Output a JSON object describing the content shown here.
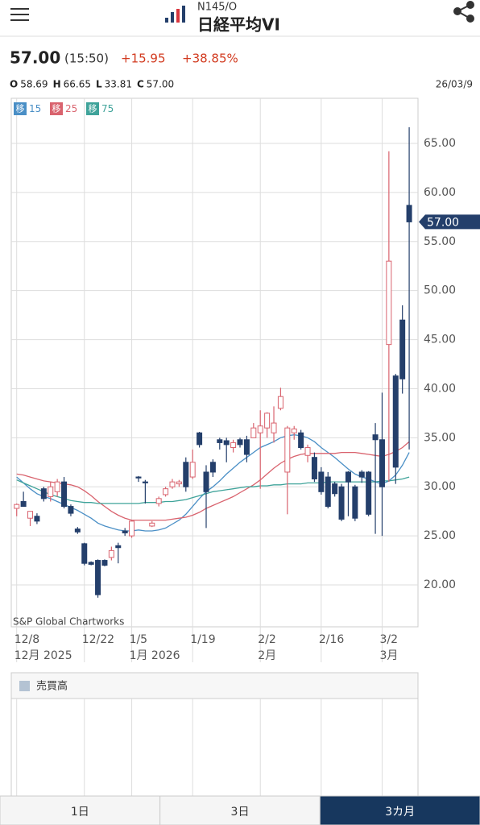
{
  "header": {
    "code": "N145/O",
    "name": "日経平均VI"
  },
  "quote": {
    "price": "57.00",
    "time": "(15:50)",
    "change": "+15.95",
    "change_pct": "+38.85%",
    "ohlc": [
      {
        "label": "O",
        "value": "58.69"
      },
      {
        "label": "H",
        "value": "66.65"
      },
      {
        "label": "L",
        "value": "33.81"
      },
      {
        "label": "C",
        "value": "57.00"
      }
    ],
    "date": "26/03/9"
  },
  "chart_data": {
    "type": "candlestick",
    "credit": "S&P Global Chartworks",
    "ma_label": "移",
    "categories": [
      "12/8",
      null,
      null,
      null,
      null,
      null,
      null,
      null,
      null,
      null,
      "12/22",
      null,
      null,
      null,
      null,
      null,
      null,
      "1/5",
      null,
      null,
      null,
      null,
      null,
      null,
      null,
      null,
      "1/19",
      null,
      null,
      null,
      null,
      null,
      null,
      null,
      null,
      null,
      "2/2",
      null,
      null,
      null,
      null,
      null,
      null,
      null,
      null,
      "2/16",
      null,
      null,
      null,
      null,
      null,
      null,
      null,
      null,
      "3/2",
      null,
      null,
      null,
      null
    ],
    "month_labels": [
      "12月 2025",
      null,
      null,
      null,
      null,
      null,
      null,
      null,
      null,
      null,
      null,
      null,
      null,
      null,
      null,
      null,
      null,
      "1月 2026",
      null,
      null,
      null,
      null,
      null,
      null,
      null,
      null,
      null,
      null,
      null,
      null,
      null,
      null,
      null,
      null,
      null,
      null,
      "2月",
      null,
      null,
      null,
      null,
      null,
      null,
      null,
      null,
      null,
      null,
      null,
      null,
      null,
      null,
      null,
      null,
      null,
      "3月",
      null,
      null,
      null,
      null
    ],
    "open": [
      27.8,
      28.5,
      26.8,
      27,
      29.8,
      29,
      29.5,
      30.5,
      28,
      25.7,
      24.2,
      22.3,
      22.5,
      22.5,
      22.8,
      24,
      25.5,
      25,
      31,
      30.5,
      26,
      28.3,
      29.2,
      30,
      30.3,
      32.5,
      31,
      35.5,
      31.5,
      32.5,
      34.8,
      34.7,
      34,
      34.8,
      34.8,
      35,
      35.5,
      36,
      35.5,
      38,
      31.5,
      35.5,
      35.5,
      33.2,
      33,
      31.5,
      31,
      30.3,
      30,
      31.5,
      30,
      31.5,
      31.5,
      35.3,
      34.8,
      44.5,
      41.3,
      47,
      58.69
    ],
    "high": [
      28.3,
      29.5,
      27.5,
      27.3,
      30,
      30.5,
      30.8,
      31,
      28.2,
      25.9,
      24.3,
      22.4,
      22.6,
      22.6,
      23.9,
      24.3,
      25.8,
      26.6,
      31.1,
      30.7,
      26.5,
      29,
      30,
      30.8,
      30.7,
      33,
      33.8,
      35.6,
      32.2,
      32.8,
      35,
      35,
      34.8,
      35,
      35.2,
      36.5,
      37.8,
      37.6,
      38.2,
      40.1,
      36.2,
      36.2,
      35.8,
      34.3,
      33.5,
      32,
      31.5,
      30.5,
      30.3,
      31.6,
      30.2,
      31.7,
      31.6,
      36.5,
      39.6,
      64.2,
      41.5,
      48.5,
      66.65
    ],
    "low": [
      27,
      28,
      26,
      26.2,
      28.5,
      28.5,
      29,
      27.8,
      27,
      25.2,
      22,
      22,
      18.7,
      21.9,
      22.5,
      22.2,
      25,
      24.8,
      30.5,
      28.3,
      25.9,
      28,
      29,
      29.8,
      30,
      29.5,
      30.8,
      34,
      25.8,
      31,
      33.8,
      32.5,
      33.5,
      34,
      32.5,
      35,
      29.8,
      35,
      34.5,
      37.8,
      27.2,
      34.8,
      33.8,
      32.5,
      30.5,
      29.2,
      27.8,
      29,
      26.5,
      27,
      26.5,
      30.4,
      27,
      25.2,
      25,
      30.5,
      30.3,
      39.5,
      33.81
    ],
    "close": [
      28.2,
      28,
      27.5,
      26.5,
      28.8,
      30,
      30.5,
      28,
      27.3,
      25.4,
      22.2,
      22.1,
      19,
      22,
      23.5,
      23.8,
      25.3,
      26.5,
      30.9,
      30.4,
      26.3,
      28.8,
      29.8,
      30.5,
      30.5,
      30,
      32.5,
      34.3,
      29.5,
      31.5,
      34.5,
      34.3,
      34.5,
      34.3,
      33.3,
      36,
      36.2,
      37.5,
      36.5,
      39.2,
      36,
      35.9,
      34,
      34,
      30.8,
      29.5,
      28,
      29.3,
      26.7,
      30.5,
      26.8,
      31,
      27.2,
      34.8,
      30,
      53,
      32,
      41,
      57
    ],
    "up_color": "#d9636e",
    "down_color": "#243f6b",
    "series": [
      {
        "name": "15",
        "color": "#4a8fc6",
        "values": [
          31,
          30.4,
          29.8,
          29.3,
          29,
          28.8,
          28.5,
          28.2,
          27.9,
          27.6,
          27.2,
          26.8,
          26.3,
          26,
          25.8,
          25.6,
          25.5,
          25.5,
          25.6,
          25.5,
          25.5,
          25.6,
          25.8,
          26.2,
          26.6,
          27.2,
          28,
          28.8,
          29.5,
          30,
          30.6,
          31.3,
          31.9,
          32.5,
          33,
          33.5,
          34,
          34.3,
          34.6,
          35,
          35.2,
          35.3,
          35.2,
          35,
          34.6,
          34,
          33.5,
          33,
          32.4,
          31.8,
          31.3,
          31,
          30.8,
          30.5,
          30.3,
          30.6,
          31.2,
          32.2,
          33.5
        ]
      },
      {
        "name": "25",
        "color": "#d9636e",
        "values": [
          31.3,
          31.2,
          31,
          30.8,
          30.6,
          30.5,
          30.4,
          30.3,
          30.2,
          30,
          29.6,
          29.1,
          28.5,
          28,
          27.5,
          27.1,
          26.8,
          26.6,
          26.6,
          26.6,
          26.6,
          26.6,
          26.6,
          26.7,
          26.8,
          26.9,
          27.1,
          27.4,
          27.8,
          28.1,
          28.4,
          28.7,
          29,
          29.4,
          29.8,
          30.2,
          30.7,
          31.3,
          31.9,
          32.4,
          32.8,
          33.1,
          33.3,
          33.4,
          33.4,
          33.4,
          33.4,
          33.4,
          33.5,
          33.5,
          33.5,
          33.4,
          33.3,
          33.2,
          33.1,
          33.3,
          33.6,
          34,
          34.6
        ]
      },
      {
        "name": "75",
        "color": "#3fa39a",
        "values": [
          30.7,
          30.4,
          30.1,
          29.8,
          29.5,
          29.2,
          29,
          28.8,
          28.6,
          28.5,
          28.4,
          28.4,
          28.3,
          28.3,
          28.3,
          28.3,
          28.3,
          28.3,
          28.3,
          28.4,
          28.4,
          28.4,
          28.5,
          28.5,
          28.6,
          28.7,
          28.9,
          29.1,
          29.3,
          29.5,
          29.6,
          29.7,
          29.8,
          29.9,
          30,
          30,
          30.1,
          30.1,
          30.2,
          30.2,
          30.3,
          30.3,
          30.3,
          30.4,
          30.4,
          30.4,
          30.5,
          30.5,
          30.5,
          30.5,
          30.5,
          30.5,
          30.5,
          30.5,
          30.6,
          30.6,
          30.7,
          30.8,
          31
        ]
      }
    ],
    "xlim": [
      -0.8,
      59.3
    ],
    "ylim": [
      15.73,
      69.6
    ],
    "yticks": [
      {
        "value": 20,
        "label": "20.00"
      },
      {
        "value": 25,
        "label": "25.00"
      },
      {
        "value": 30,
        "label": "30.00"
      },
      {
        "value": 35,
        "label": "35.00"
      },
      {
        "value": 40,
        "label": "40.00"
      },
      {
        "value": 45,
        "label": "45.00"
      },
      {
        "value": 50,
        "label": "50.00"
      },
      {
        "value": 55,
        "label": "55.00"
      },
      {
        "value": 60,
        "label": "60.00"
      },
      {
        "value": 65,
        "label": "65.00"
      }
    ],
    "grid": true
  },
  "volume_panel": {
    "title": "売買高"
  },
  "tabs": [
    {
      "label": "1日"
    },
    {
      "label": "3日"
    },
    {
      "label": "3カ月",
      "selected": true
    }
  ]
}
